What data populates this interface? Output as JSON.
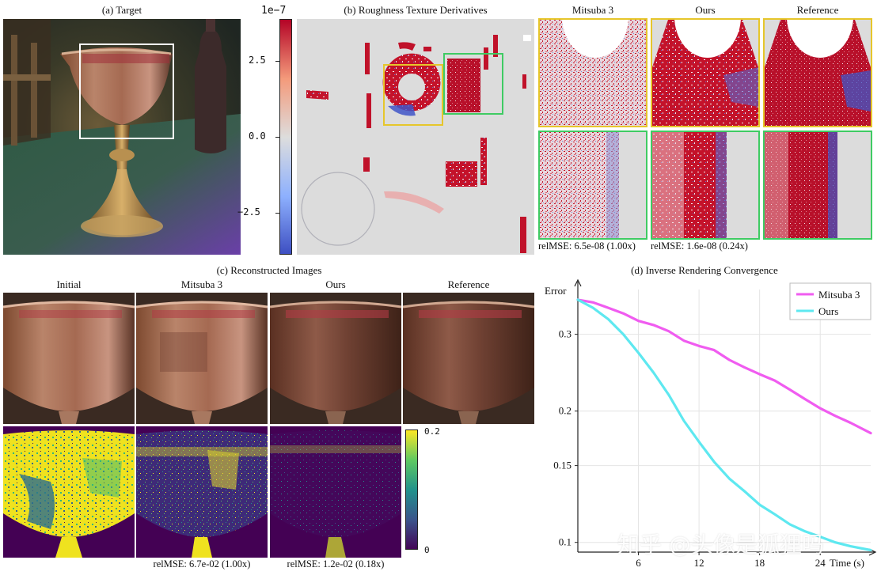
{
  "panel_a": {
    "caption": "(a) Target"
  },
  "colorbar_b": {
    "exponent": "1e−7",
    "ticks": [
      "2.5",
      "0.0",
      "−2.5"
    ],
    "tick_values": [
      2.5,
      0.0,
      -2.5
    ],
    "range": [
      -3.9,
      3.9
    ]
  },
  "panel_b": {
    "caption": "(b) Roughness Texture Derivatives"
  },
  "zoom_grid": {
    "columns": [
      "Mitsuba 3",
      "Ours",
      "Reference"
    ],
    "relmse": [
      "relMSE: 6.5e-08 (1.00x)",
      "relMSE: 1.6e-08 (0.24x)"
    ],
    "frame_colors": {
      "yellow": "#e6c62b",
      "green": "#3fcb63"
    }
  },
  "panel_c": {
    "caption": "(c) Reconstructed Images",
    "columns": [
      "Initial",
      "Mitsuba 3",
      "Ours",
      "Reference"
    ],
    "relmse": [
      "relMSE: 6.7e-02 (1.00x)",
      "relMSE: 1.2e-02 (0.18x)"
    ],
    "colorbar_ticks": [
      "0.2",
      "0"
    ]
  },
  "panel_d": {
    "caption": "(d) Inverse Rendering Convergence",
    "ylabel": "Error",
    "xlabel": "Time (s)"
  },
  "chart_data": {
    "type": "line",
    "title": "(d) Inverse Rendering Convergence",
    "xlabel": "Time (s)",
    "ylabel": "Error",
    "y_scale": "log",
    "xlim": [
      0,
      29
    ],
    "ylim": [
      0.095,
      0.38
    ],
    "xticks": [
      6,
      12,
      18,
      24
    ],
    "yticks": [
      0.1,
      0.15,
      0.2,
      0.3
    ],
    "ytick_labels": [
      "0.1",
      "0.15",
      "0.2",
      "0.3"
    ],
    "grid": true,
    "legend_position": "top-right",
    "series": [
      {
        "name": "Mitsuba 3",
        "color": "#f05cf0",
        "x": [
          0,
          1.5,
          3,
          4.5,
          6,
          7.5,
          9,
          10.5,
          12,
          13.5,
          15,
          16.5,
          18,
          19.5,
          21,
          22.5,
          24,
          25.5,
          27,
          29
        ],
        "y": [
          0.36,
          0.355,
          0.345,
          0.335,
          0.322,
          0.315,
          0.305,
          0.29,
          0.282,
          0.276,
          0.262,
          0.252,
          0.243,
          0.235,
          0.224,
          0.213,
          0.203,
          0.195,
          0.188,
          0.178
        ]
      },
      {
        "name": "Ours",
        "color": "#5ee8f0",
        "x": [
          0,
          1.5,
          3,
          4.5,
          6,
          7.5,
          9,
          10.5,
          12,
          13.5,
          15,
          16.5,
          18,
          19.5,
          21,
          22.5,
          24,
          25.5,
          27,
          29
        ],
        "y": [
          0.36,
          0.345,
          0.325,
          0.3,
          0.272,
          0.245,
          0.218,
          0.19,
          0.17,
          0.153,
          0.14,
          0.131,
          0.122,
          0.116,
          0.11,
          0.106,
          0.103,
          0.1,
          0.098,
          0.096
        ]
      }
    ]
  },
  "watermark": "知乎 @头像是狐狸吗"
}
